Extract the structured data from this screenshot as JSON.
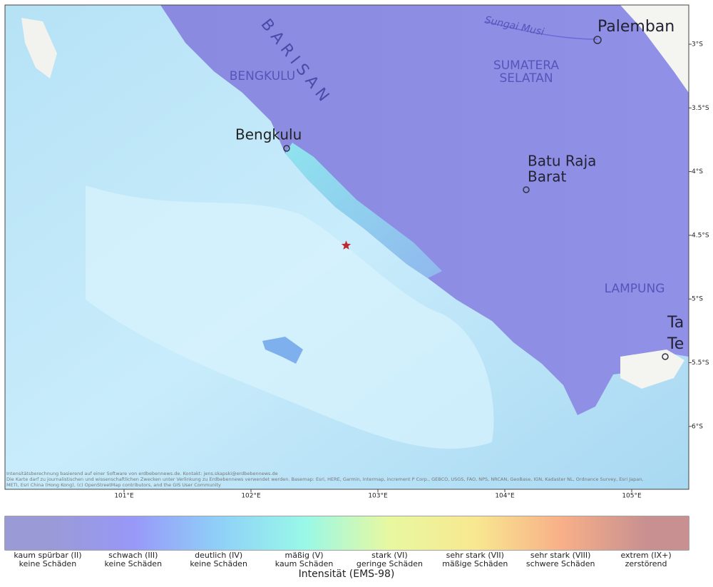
{
  "map": {
    "places": [
      {
        "label": "Palemban",
        "kind": "city"
      },
      {
        "label": "SUMATERA",
        "kind": "region"
      },
      {
        "label": "SELATAN",
        "kind": "region"
      },
      {
        "label": "BENGKULU",
        "kind": "region"
      },
      {
        "label": "Bengkulu",
        "kind": "city"
      },
      {
        "label": "Batu Raja",
        "kind": "city"
      },
      {
        "label": "Barat",
        "kind": "city"
      },
      {
        "label": "LAMPUNG",
        "kind": "region"
      },
      {
        "label": "Ta",
        "kind": "city"
      },
      {
        "label": "Te",
        "kind": "city"
      },
      {
        "label": "Sungai Musi",
        "kind": "river"
      },
      {
        "label": "B A R I S A N",
        "kind": "range"
      }
    ],
    "lat_ticks": [
      {
        "value": 3,
        "label": "3°S"
      },
      {
        "value": 3.5,
        "label": "3.5°S"
      },
      {
        "value": 4,
        "label": "4°S"
      },
      {
        "value": 4.5,
        "label": "4.5°S"
      },
      {
        "value": 5,
        "label": "5°S"
      },
      {
        "value": 5.5,
        "label": "5.5°S"
      },
      {
        "value": 6,
        "label": "6°S"
      }
    ],
    "lon_ticks": [
      {
        "value": 101,
        "label": "101°E"
      },
      {
        "value": 102,
        "label": "102°E"
      },
      {
        "value": 103,
        "label": "103°E"
      },
      {
        "value": 104,
        "label": "104°E"
      },
      {
        "value": 105,
        "label": "105°E"
      }
    ],
    "epicenter": {
      "lon": 102.75,
      "lat": 4.58
    },
    "attribution": [
      "Intensitätsberechnung basierend auf einer Software von erdbebennews.de. Kontakt: jens.skapski@erdbebennews.de",
      "Die Karte darf zu journalistischen und wissenschaftlichen Zwecken unter Verlinkung zu Erdbebennews verwendet werden. Basemap: Esri, HERE, Garmin, Intermap, increment P Corp., GEBCO, USGS, FAO, NPS, NRCAN, GeoBase, IGN, Kadaster NL, Ordnance Survey, Esri Japan,",
      "METI, Esri China (Hong Kong), (c) OpenStreetMap contributors, and the GIS User Community"
    ]
  },
  "legend": {
    "title": "Intensität (EMS-98)",
    "levels": [
      {
        "line1": "kaum spürbar (II)",
        "line2": "keine Schäden",
        "color": "#9a9ad6"
      },
      {
        "line1": "schwach (III)",
        "line2": "keine Schäden",
        "color": "#9898f8"
      },
      {
        "line1": "deutlich (IV)",
        "line2": "keine Schäden",
        "color": "#8fd0f8"
      },
      {
        "line1": "mäßig (V)",
        "line2": "kaum Schäden",
        "color": "#98f8e8"
      },
      {
        "line1": "stark (VI)",
        "line2": "geringe Schäden",
        "color": "#e8f8a0"
      },
      {
        "line1": "sehr stark (VII)",
        "line2": "mäßige Schäden",
        "color": "#f8e890"
      },
      {
        "line1": "sehr stark (VIII)",
        "line2": "schwere Schäden",
        "color": "#f8b088"
      },
      {
        "line1": "extrem (IX+)",
        "line2": "zerstörend",
        "color": "#c89090"
      }
    ]
  }
}
